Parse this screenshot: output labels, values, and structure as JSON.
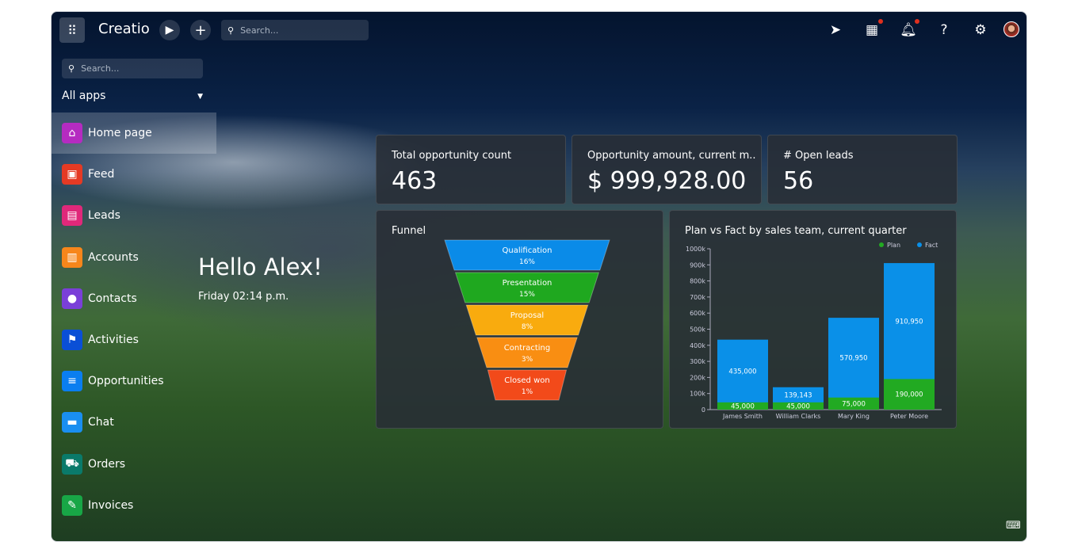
{
  "topbar": {
    "logo": "Creatio",
    "search_placeholder": "Search..."
  },
  "sidebar": {
    "search_placeholder": "Search...",
    "apps_selector": "All apps",
    "items": [
      {
        "label": "Home page",
        "icon": "home-icon",
        "color": "#b52bc1",
        "active": true
      },
      {
        "label": "Feed",
        "icon": "feed-icon",
        "color": "#e53a24"
      },
      {
        "label": "Leads",
        "icon": "leads-icon",
        "color": "#e0287a"
      },
      {
        "label": "Accounts",
        "icon": "accounts-icon",
        "color": "#f7861b"
      },
      {
        "label": "Contacts",
        "icon": "contacts-icon",
        "color": "#7a3fd8"
      },
      {
        "label": "Activities",
        "icon": "flag-icon",
        "color": "#0a4fd6"
      },
      {
        "label": "Opportunities",
        "icon": "funnel-icon",
        "color": "#0a7ef0"
      },
      {
        "label": "Chat",
        "icon": "chat-icon",
        "color": "#1a8ff0"
      },
      {
        "label": "Orders",
        "icon": "cart-icon",
        "color": "#0a7a6a"
      },
      {
        "label": "Invoices",
        "icon": "invoice-icon",
        "color": "#18a646"
      }
    ]
  },
  "greeting": {
    "title": "Hello Alex!",
    "datetime": "Friday 02:14 p.m."
  },
  "kpis": [
    {
      "title": "Total opportunity count",
      "value": "463"
    },
    {
      "title": "Opportunity amount, current m..",
      "value": "$ 999,928.00"
    },
    {
      "title": "# Open leads",
      "value": "56"
    }
  ],
  "funnel": {
    "title": "Funnel",
    "stages": [
      {
        "label": "Qualification",
        "pct": "16%",
        "color": "#0a8be8"
      },
      {
        "label": "Presentation",
        "pct": "15%",
        "color": "#1fa81f"
      },
      {
        "label": "Proposal",
        "pct": "8%",
        "color": "#f9ab0e"
      },
      {
        "label": "Contracting",
        "pct": "3%",
        "color": "#f98e12"
      },
      {
        "label": "Closed won",
        "pct": "1%",
        "color": "#f24a1a"
      }
    ]
  },
  "chart_data": {
    "type": "bar",
    "title": "Plan vs Fact by sales team, current quarter",
    "categories": [
      "James Smith",
      "William Clarks",
      "Mary King",
      "Peter Moore"
    ],
    "series": [
      {
        "name": "Plan",
        "color": "#22aa22",
        "values": [
          45000,
          45000,
          75000,
          190000
        ],
        "labels": [
          "45,000",
          "45,000",
          "75,000",
          "190,000"
        ]
      },
      {
        "name": "Fact",
        "color": "#0a90e8",
        "values": [
          435000,
          139143,
          570950,
          910950
        ],
        "labels": [
          "435,000",
          "139,143",
          "570,950",
          "910,950"
        ]
      }
    ],
    "ylim": [
      0,
      1000000
    ],
    "yticks": [
      "0",
      "100k",
      "200k",
      "300k",
      "400k",
      "500k",
      "600k",
      "700k",
      "800k",
      "900k",
      "1000k"
    ],
    "legend": "top-right",
    "overlap": true
  }
}
